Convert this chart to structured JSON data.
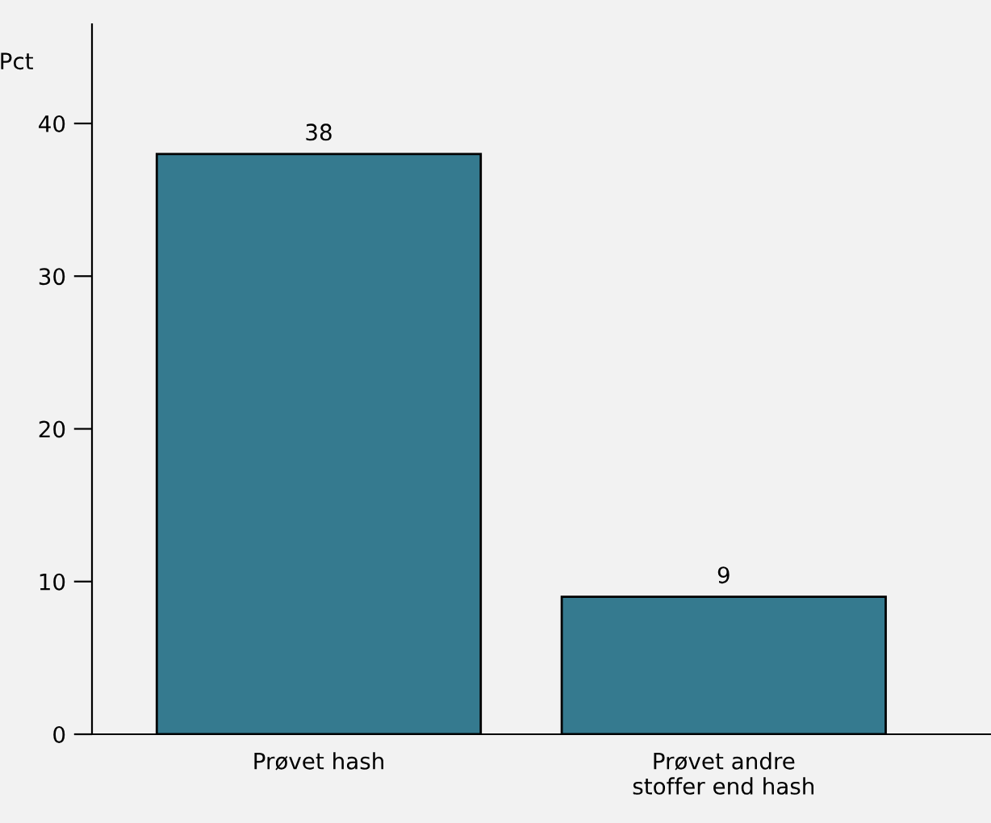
{
  "chart_data": {
    "type": "bar",
    "ylabel": "Pct",
    "categories": [
      "Prøvet hash",
      "Prøvet andre\nstoffer end hash"
    ],
    "values": [
      38,
      9
    ],
    "color": "#357a8f",
    "ylim": [
      0,
      46.5
    ],
    "yticks": [
      0,
      10,
      20,
      30,
      40
    ],
    "grid": false,
    "data_labels": true
  }
}
